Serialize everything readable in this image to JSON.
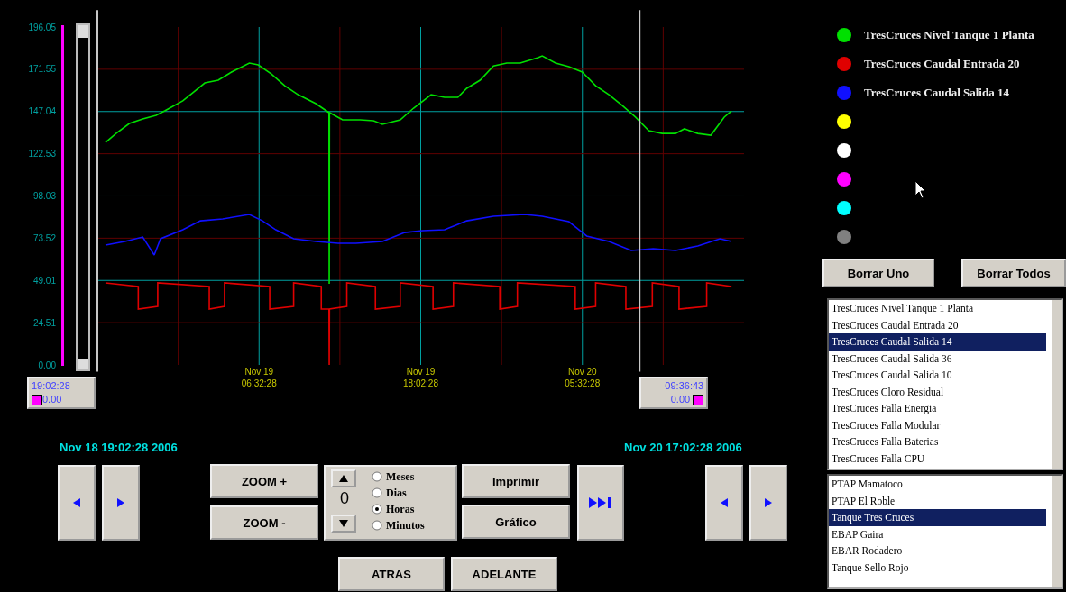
{
  "chart_data": {
    "type": "line",
    "grid": true,
    "legend": "right",
    "xlim": [
      "2006-11-18T19:02:28",
      "2006-11-20T17:02:28"
    ],
    "xticks": [
      {
        "value": "2006-11-19T00:47:28",
        "label": null
      },
      {
        "value": "2006-11-19T06:32:28",
        "label": "Nov 19\n06:32:28"
      },
      {
        "value": "2006-11-19T12:17:28",
        "label": null
      },
      {
        "value": "2006-11-19T18:02:28",
        "label": "Nov 19\n18:02:28"
      },
      {
        "value": "2006-11-19T23:47:28",
        "label": null
      },
      {
        "value": "2006-11-20T05:32:28",
        "label": "Nov 20\n05:32:28"
      },
      {
        "value": "2006-11-20T11:17:28",
        "label": null
      }
    ],
    "ylim": [
      0,
      196.05
    ],
    "yticks": [
      {
        "value": 0,
        "label": "0.00"
      },
      24.51,
      49.01,
      73.52,
      98.03,
      122.53,
      147.04,
      171.55,
      196.05
    ],
    "series": [
      {
        "name": "TresCruces Nivel Tanque 1 Planta",
        "color": "#00e000",
        "x": [
          "2006-11-18T19:37",
          "2006-11-18T20:22",
          "2006-11-18T21:19",
          "2006-11-18T22:16",
          "2006-11-18T23:13",
          "2006-11-18T23:50",
          "2006-11-19T01:07",
          "2006-11-19T01:44",
          "2006-11-19T02:41",
          "2006-11-19T03:38",
          "2006-11-19T04:35",
          "2006-11-19T05:51",
          "2006-11-19T06:29",
          "2006-11-19T07:25",
          "2006-11-19T08:22",
          "2006-11-19T09:19",
          "2006-11-19T10:35",
          "2006-11-19T11:31",
          "2006-11-19T11:32",
          "2006-11-19T11:33",
          "2006-11-19T12:29",
          "2006-11-19T13:44",
          "2006-11-19T14:41",
          "2006-11-19T15:19",
          "2006-11-19T16:35",
          "2006-11-19T17:32",
          "2006-11-19T18:47",
          "2006-11-19T19:44",
          "2006-11-19T20:41",
          "2006-11-19T21:19",
          "2006-11-19T22:16",
          "2006-11-19T23:13",
          "2006-11-20T00:10",
          "2006-11-20T01:07",
          "2006-11-20T02:23",
          "2006-11-20T02:41",
          "2006-11-20T03:38",
          "2006-11-20T04:35",
          "2006-11-20T05:32",
          "2006-11-20T06:29",
          "2006-11-20T07:26",
          "2006-11-20T08:23",
          "2006-11-20T09:19",
          "2006-11-20T10:16",
          "2006-11-20T11:13",
          "2006-11-20T12:10",
          "2006-11-20T12:48",
          "2006-11-20T13:45",
          "2006-11-20T14:41",
          "2006-11-20T15:38",
          "2006-11-20T16:09"
        ],
        "values": [
          129.1,
          134.3,
          140.1,
          142.7,
          144.8,
          147.4,
          153.2,
          157.3,
          163.6,
          165.2,
          169.9,
          175.1,
          174.1,
          168.8,
          162.0,
          156.8,
          151.6,
          146.4,
          47.0,
          146.4,
          142.2,
          142.2,
          141.7,
          139.6,
          142.2,
          149.0,
          156.8,
          155.3,
          155.3,
          160.5,
          165.2,
          173.5,
          175.1,
          175.1,
          178.3,
          179.3,
          175.1,
          173.0,
          169.9,
          162.0,
          156.8,
          150.5,
          143.8,
          135.9,
          134.3,
          134.3,
          137.0,
          134.3,
          133.3,
          143.8,
          147.4
        ]
      },
      {
        "name": "TresCruces Caudal Entrada 20",
        "color": "#e00000",
        "x": [
          "2006-11-18T19:37",
          "2006-11-18T21:57",
          "2006-11-18T21:57",
          "2006-11-18T23:20",
          "2006-11-18T23:20",
          "2006-11-19T03:00",
          "2006-11-19T03:00",
          "2006-11-19T04:05",
          "2006-11-19T04:05",
          "2006-11-19T07:18",
          "2006-11-19T07:18",
          "2006-11-19T09:00",
          "2006-11-19T09:00",
          "2006-11-19T10:58",
          "2006-11-19T10:58",
          "2006-11-19T11:31",
          "2006-11-19T11:32",
          "2006-11-19T11:33",
          "2006-11-19T12:47",
          "2006-11-19T12:47",
          "2006-11-19T14:49",
          "2006-11-19T14:49",
          "2006-11-19T16:35",
          "2006-11-19T16:35",
          "2006-11-19T18:55",
          "2006-11-19T18:55",
          "2006-11-19T20:22",
          "2006-11-19T20:22",
          "2006-11-19T23:40",
          "2006-11-19T23:40",
          "2006-11-20T00:55",
          "2006-11-20T00:55",
          "2006-11-20T05:02",
          "2006-11-20T05:02",
          "2006-11-20T06:29",
          "2006-11-20T06:29",
          "2006-11-20T08:38",
          "2006-11-20T08:38",
          "2006-11-20T10:31",
          "2006-11-20T10:31",
          "2006-11-20T12:25",
          "2006-11-20T12:25",
          "2006-11-20T14:23",
          "2006-11-20T14:23",
          "2006-11-20T16:09"
        ],
        "values": [
          47.6,
          45.5,
          32.4,
          34.0,
          47.6,
          45.5,
          32.4,
          34.0,
          47.6,
          45.5,
          32.4,
          34.0,
          47.6,
          45.5,
          32.4,
          32.4,
          0,
          32.4,
          34.0,
          47.6,
          45.5,
          32.4,
          34.0,
          47.6,
          45.5,
          32.4,
          34.0,
          47.6,
          45.5,
          32.4,
          34.0,
          47.6,
          45.5,
          32.4,
          34.0,
          47.6,
          45.5,
          32.4,
          34.0,
          47.6,
          45.5,
          32.4,
          34.0,
          47.6,
          45.5
        ]
      },
      {
        "name": "TresCruces Caudal Salida 14",
        "color": "#1010ff",
        "x": [
          "2006-11-18T19:37",
          "2006-11-18T21:00",
          "2006-11-18T22:16",
          "2006-11-18T23:05",
          "2006-11-18T23:32",
          "2006-11-19T01:07",
          "2006-11-19T02:22",
          "2006-11-19T03:57",
          "2006-11-19T05:51",
          "2006-11-19T06:47",
          "2006-11-19T07:44",
          "2006-11-19T09:00",
          "2006-11-19T10:35",
          "2006-11-19T12:10",
          "2006-11-19T13:26",
          "2006-11-19T15:19",
          "2006-11-19T16:54",
          "2006-11-19T18:10",
          "2006-11-19T19:44",
          "2006-11-19T21:19",
          "2006-11-19T23:13",
          "2006-11-20T01:26",
          "2006-11-20T02:41",
          "2006-11-20T04:35",
          "2006-11-20T05:51",
          "2006-11-20T07:26",
          "2006-11-20T09:01",
          "2006-11-20T10:35",
          "2006-11-20T12:10",
          "2006-11-20T13:45",
          "2006-11-20T15:20",
          "2006-11-20T16:09"
        ],
        "values": [
          69.5,
          71.6,
          74.2,
          63.8,
          73.2,
          78.4,
          83.6,
          84.7,
          87.3,
          83.6,
          78.4,
          73.2,
          71.6,
          70.6,
          70.6,
          71.6,
          76.8,
          77.9,
          78.4,
          83.6,
          86.3,
          87.3,
          86.3,
          83.1,
          74.8,
          71.6,
          66.4,
          67.4,
          66.4,
          69.0,
          73.2,
          71.6
        ]
      }
    ],
    "ref_lines": [
      {
        "axis": "x",
        "value": "2006-11-20T09:36:43",
        "label": "09:36:43",
        "color": "#c8c8c8"
      }
    ],
    "annotations": [
      "19:02:28",
      "0.00",
      "0.00",
      "Nov 18 19:02:28 2006",
      "Nov 20 17:02:28 2006",
      "ZOOM +",
      "ZOOM -",
      "0",
      "Meses",
      "Dias",
      "Horas",
      "Minutos",
      "Imprimir",
      "Gráfico",
      "ATRAS",
      "ADELANTE",
      "Borrar Uno",
      "Borrar Todos",
      "TresCruces Nivel Tanque 1 Planta",
      "TresCruces Caudal Entrada 20",
      "TresCruces Caudal Salida 14",
      "TresCruces Caudal Salida 36",
      "TresCruces Caudal Salida 10",
      "TresCruces Cloro Residual",
      "TresCruces Falla Energia",
      "TresCruces Falla Modular",
      "TresCruces Falla Baterias",
      "TresCruces Falla CPU",
      "PTAP Mamatoco",
      "PTAP El Roble",
      "Tanque Tres Cruces",
      "EBAP Gaira",
      "EBAR Rodadero",
      "Tanque Sello Rojo"
    ]
  }
}
